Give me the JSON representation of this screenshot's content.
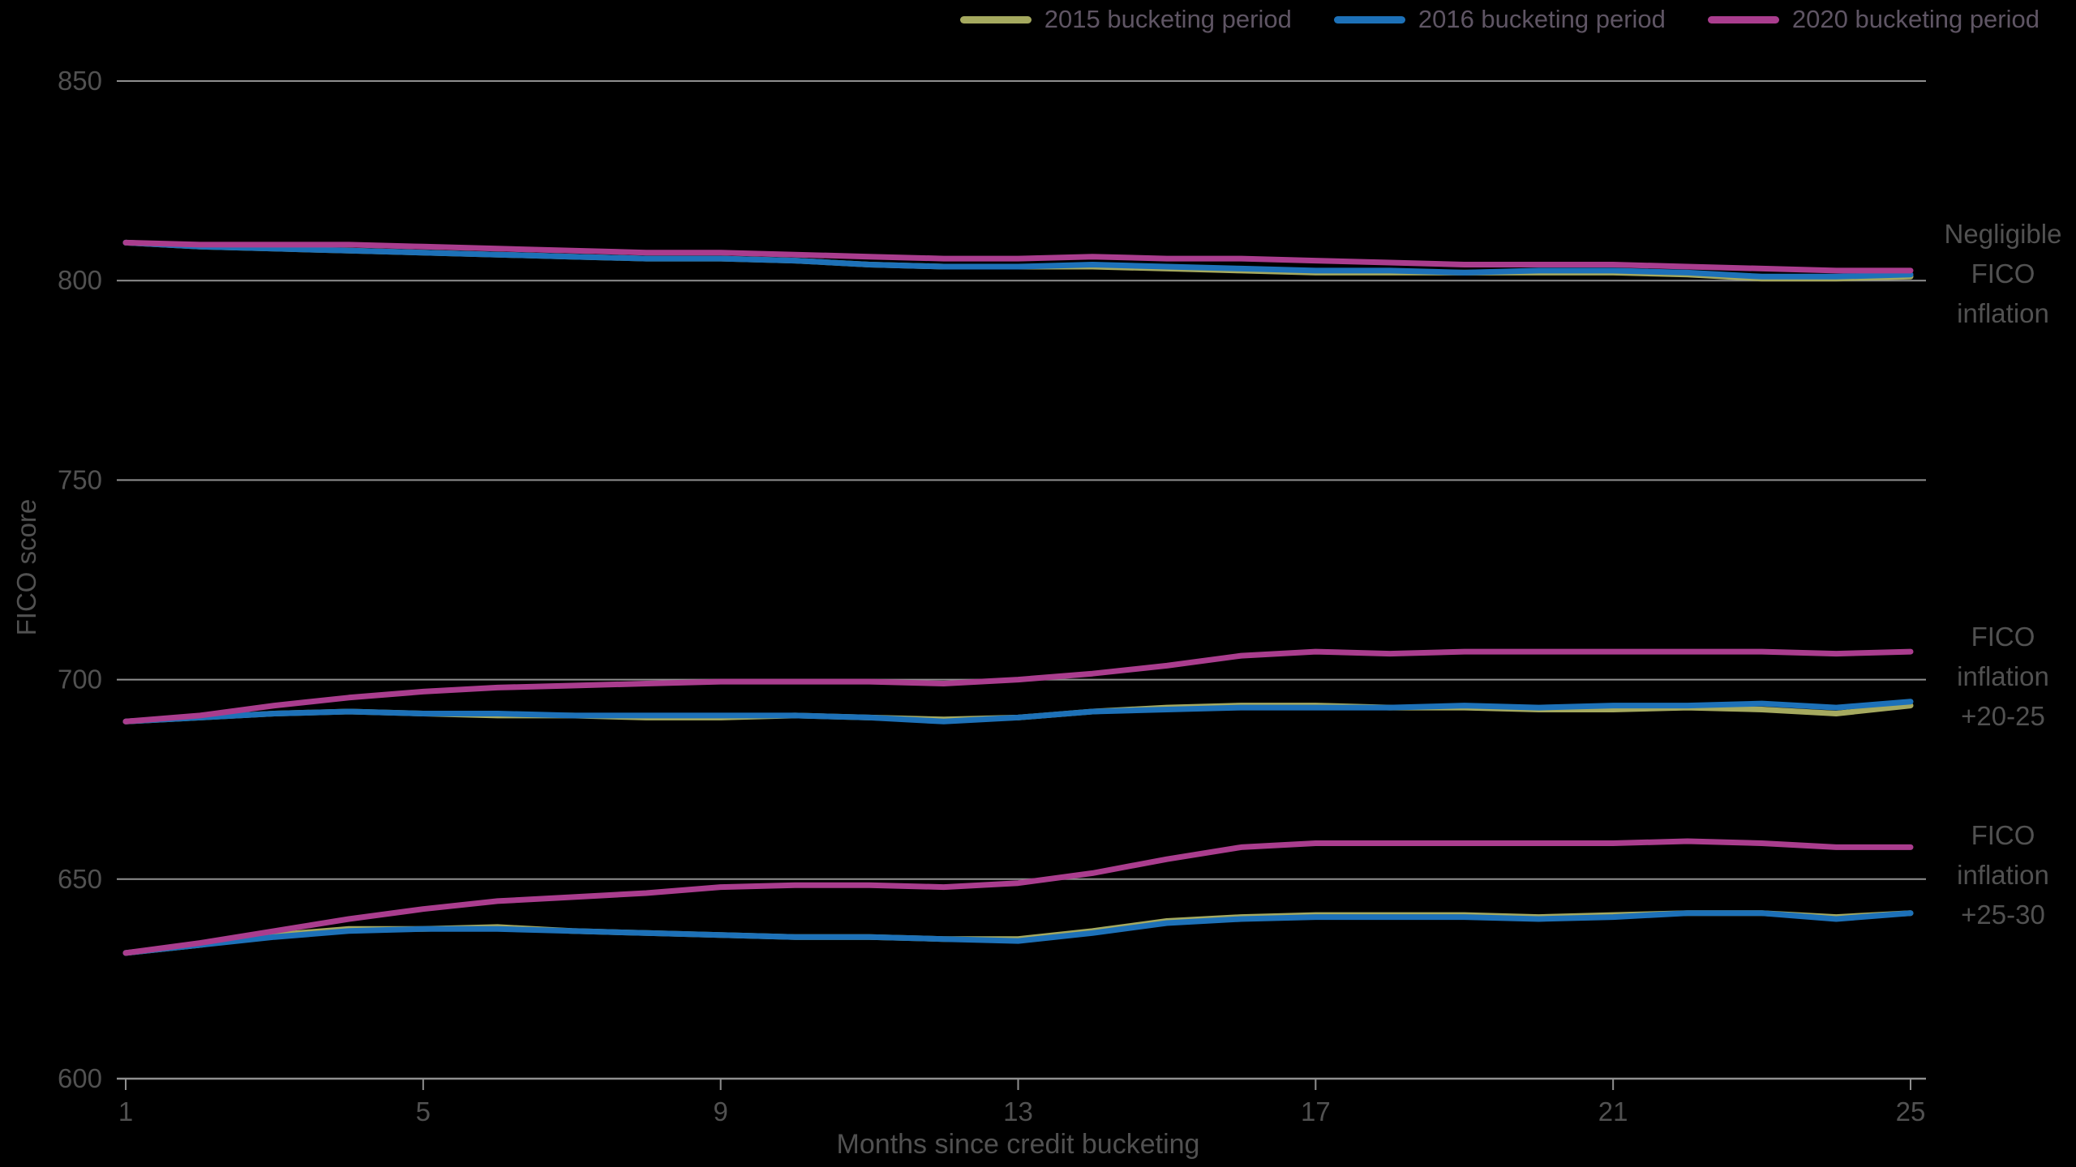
{
  "colors": {
    "background": "#000000",
    "grid": "#8f8f8f",
    "axis_text": "#515151",
    "legend_text": "#5f5564"
  },
  "annotations": [
    {
      "text": "Negligible\nFICO\ninflation"
    },
    {
      "text": "FICO\ninflation\n+20-25"
    },
    {
      "text": "FICO\ninflation\n+25-30"
    }
  ],
  "chart_data": {
    "type": "line",
    "title": "",
    "xlabel": "Months since credit bucketing",
    "ylabel": "FICO score",
    "ylim": [
      600,
      850
    ],
    "yticks": [
      600,
      650,
      700,
      750,
      800,
      850
    ],
    "xticks": [
      1,
      5,
      9,
      13,
      17,
      21,
      25
    ],
    "grid": "horizontal",
    "legend_position": "top-right",
    "x": [
      1,
      2,
      3,
      4,
      5,
      6,
      7,
      8,
      9,
      10,
      11,
      12,
      13,
      14,
      15,
      16,
      17,
      18,
      19,
      20,
      21,
      22,
      23,
      24,
      25
    ],
    "groups": [
      {
        "name": "Negligible FICO inflation",
        "series": [
          {
            "name": "2015 bucketing period",
            "color": "#a5a95f",
            "values": [
              809.5,
              808.5,
              808,
              807.5,
              807,
              806.5,
              806,
              805.5,
              805.5,
              805,
              804,
              803.5,
              803.5,
              803.5,
              803,
              802.5,
              802,
              802,
              802,
              802,
              802,
              801.5,
              800.5,
              800.5,
              801
            ]
          },
          {
            "name": "2016 bucketing period",
            "color": "#1d71b8",
            "values": [
              809.5,
              808.5,
              808,
              807.5,
              807,
              806.5,
              806,
              805.5,
              805.5,
              805,
              804,
              803.5,
              803.5,
              804,
              803.5,
              803,
              802.5,
              802.5,
              802,
              802.5,
              802.5,
              802,
              801,
              801,
              801.5
            ]
          },
          {
            "name": "2020 bucketing period",
            "color": "#aa3d8e",
            "values": [
              809.5,
              809,
              809,
              809,
              808.5,
              808,
              807.5,
              807,
              807,
              806.5,
              806,
              805.5,
              805.5,
              806,
              805.5,
              805.5,
              805,
              804.5,
              804,
              804,
              804,
              803.5,
              803,
              802.5,
              802.5
            ]
          }
        ]
      },
      {
        "name": "FICO inflation +20-25",
        "series": [
          {
            "name": "2015 bucketing period",
            "color": "#a5a95f",
            "values": [
              689.5,
              690.5,
              691.5,
              692,
              691.5,
              691,
              691,
              690.5,
              690.5,
              691,
              690.5,
              690,
              690.5,
              692,
              693,
              693.5,
              693.5,
              693,
              693,
              692.5,
              692.5,
              693,
              692.5,
              691.5,
              693.5
            ]
          },
          {
            "name": "2016 bucketing period",
            "color": "#1d71b8",
            "values": [
              689.5,
              690.5,
              691.5,
              692,
              691.5,
              691.5,
              691,
              691,
              691,
              691,
              690.5,
              689.5,
              690.5,
              692,
              692.5,
              693,
              693,
              693,
              693.5,
              693,
              693.5,
              693.5,
              694,
              693,
              694.5
            ]
          },
          {
            "name": "2020 bucketing period",
            "color": "#aa3d8e",
            "values": [
              689.5,
              691,
              693.5,
              695.5,
              697,
              698,
              698.5,
              699,
              699.5,
              699.5,
              699.5,
              699,
              700,
              701.5,
              703.5,
              706,
              707,
              706.5,
              707,
              707,
              707,
              707,
              707,
              706.5,
              707
            ]
          }
        ]
      },
      {
        "name": "FICO inflation +25-30",
        "series": [
          {
            "name": "2015 bucketing period",
            "color": "#a5a95f",
            "values": [
              631.5,
              633.5,
              636,
              637.5,
              637.5,
              638,
              637,
              636.5,
              636,
              635.5,
              635.5,
              635,
              635,
              637,
              639.5,
              640.5,
              641,
              641,
              641,
              640.5,
              641,
              641.5,
              641.5,
              640.5,
              641.5
            ]
          },
          {
            "name": "2016 bucketing period",
            "color": "#1d71b8",
            "values": [
              631.5,
              633.5,
              635.5,
              637,
              637.5,
              637.5,
              637,
              636.5,
              636,
              635.5,
              635.5,
              635,
              634.5,
              636.5,
              639,
              640,
              640.5,
              640.5,
              640.5,
              640,
              640.5,
              641.5,
              641.5,
              640,
              641.5
            ]
          },
          {
            "name": "2020 bucketing period",
            "color": "#aa3d8e",
            "values": [
              631.5,
              634,
              637,
              640,
              642.5,
              644.5,
              645.5,
              646.5,
              648,
              648.5,
              648.5,
              648,
              649,
              651.5,
              655,
              658,
              659,
              659,
              659,
              659,
              659,
              659.5,
              659,
              658,
              658
            ]
          }
        ]
      }
    ]
  }
}
